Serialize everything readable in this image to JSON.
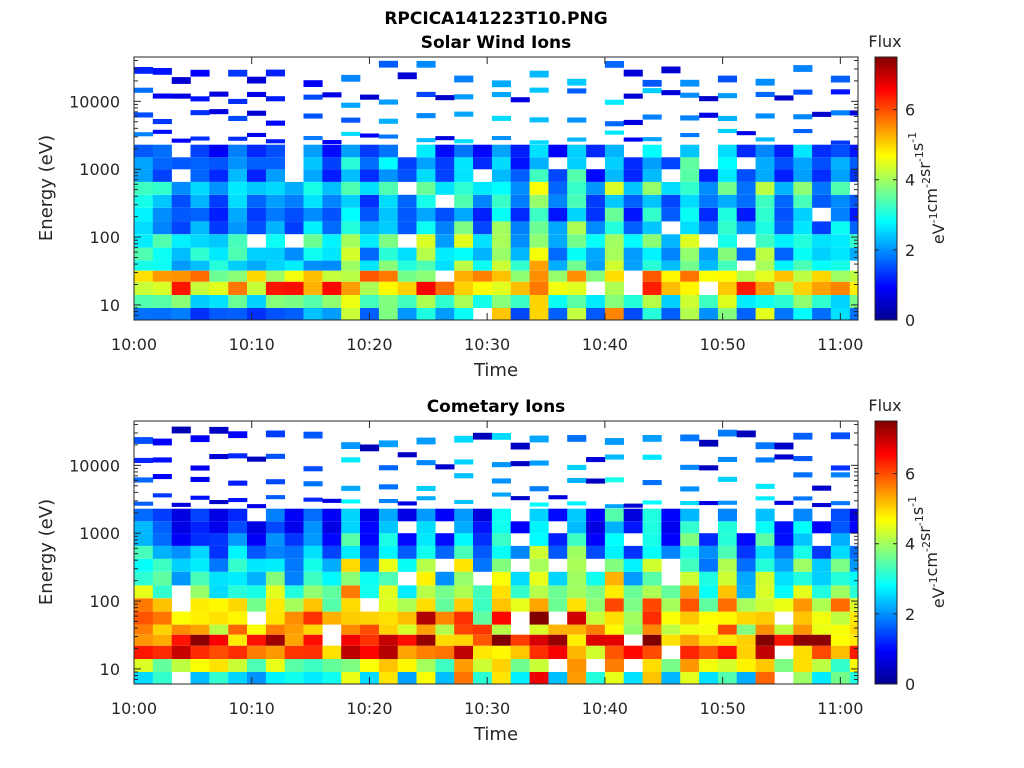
{
  "figure_title": "RPCICA141223T10.PNG",
  "colormap": [
    "#00008f",
    "#0000ff",
    "#0080ff",
    "#00ffff",
    "#80ff80",
    "#ffff00",
    "#ff8000",
    "#ff0000",
    "#800000"
  ],
  "chart_data": [
    {
      "type": "heatmap",
      "title": "Solar Wind Ions",
      "xlabel": "Time",
      "ylabel": "Energy (eV)",
      "x_range_minutes": [
        0,
        61.5
      ],
      "y_scale": "log",
      "ylim": [
        6,
        45000
      ],
      "xticks": [
        {
          "minute": 0,
          "label": "10:00"
        },
        {
          "minute": 10,
          "label": "10:10"
        },
        {
          "minute": 20,
          "label": "10:20"
        },
        {
          "minute": 30,
          "label": "10:30"
        },
        {
          "minute": 40,
          "label": "10:40"
        },
        {
          "minute": 50,
          "label": "10:50"
        },
        {
          "minute": 60,
          "label": "11:00"
        }
      ],
      "yticks": [
        {
          "value": 10,
          "label": "10"
        },
        {
          "value": 100,
          "label": "100"
        },
        {
          "value": 1000,
          "label": "1000"
        },
        {
          "value": 10000,
          "label": "10000"
        }
      ],
      "colorbar": {
        "label": "Flux",
        "units": [
          "eV",
          "-1",
          "cm",
          "-2",
          "sr",
          "-1",
          "s",
          "-1"
        ],
        "range": [
          0,
          7.5
        ],
        "ticks": [
          {
            "value": 0,
            "label": "0"
          },
          {
            "value": 2,
            "label": "2"
          },
          {
            "value": 4,
            "label": "4"
          },
          {
            "value": 6,
            "label": "6"
          }
        ]
      },
      "bands": [
        {
          "e0": 6,
          "e1": 9,
          "v": 1.7
        },
        {
          "e0": 9,
          "e1": 14,
          "v": 3.2
        },
        {
          "e0": 14,
          "e1": 22,
          "v": 5.3
        },
        {
          "e0": 22,
          "e1": 32,
          "v": 4.8
        },
        {
          "e0": 32,
          "e1": 45,
          "v": 2.6
        },
        {
          "e0": 45,
          "e1": 70,
          "v": 2.2
        },
        {
          "e0": 70,
          "e1": 110,
          "v": 2.6
        },
        {
          "e0": 110,
          "e1": 170,
          "v": 1.8
        },
        {
          "e0": 170,
          "e1": 270,
          "v": 1.4
        },
        {
          "e0": 270,
          "e1": 420,
          "v": 1.6
        },
        {
          "e0": 420,
          "e1": 650,
          "v": 2.2
        },
        {
          "e0": 650,
          "e1": 1000,
          "v": 1.3
        },
        {
          "e0": 1000,
          "e1": 1500,
          "v": 1.4
        },
        {
          "e0": 1500,
          "e1": 2300,
          "v": 1.1
        },
        {
          "e0": 2300,
          "e1": 4000,
          "v": 0.8
        },
        {
          "e0": 4000,
          "e1": 8000,
          "v": 0.7
        },
        {
          "e0": 8000,
          "e1": 16000,
          "v": 0.6
        },
        {
          "e0": 16000,
          "e1": 40000,
          "v": 0.5
        }
      ],
      "bursts": [
        {
          "t": 0.5,
          "e0": 6,
          "e1": 45000,
          "v": 3.5
        },
        {
          "t": 3.0,
          "e0": 6,
          "e1": 45000,
          "v": 3.6
        },
        {
          "t": 6.2,
          "e0": 6,
          "e1": 45000,
          "v": 3.4
        },
        {
          "t": 9.3,
          "e0": 6,
          "e1": 45000,
          "v": 3.7
        },
        {
          "t": 12.5,
          "e0": 6,
          "e1": 45000,
          "v": 3.5
        },
        {
          "t": 15.6,
          "e0": 6,
          "e1": 45000,
          "v": 3.6
        },
        {
          "t": 18.5,
          "e0": 6,
          "e1": 45000,
          "v": 4.2
        },
        {
          "t": 21.8,
          "e0": 6,
          "e1": 45000,
          "v": 4.5
        },
        {
          "t": 25.0,
          "e0": 6,
          "e1": 45000,
          "v": 4.3
        },
        {
          "t": 28.1,
          "e0": 6,
          "e1": 45000,
          "v": 4.1
        },
        {
          "t": 31.3,
          "e0": 6,
          "e1": 45000,
          "v": 4.6
        },
        {
          "t": 34.4,
          "e0": 6,
          "e1": 45000,
          "v": 4.4
        },
        {
          "t": 37.6,
          "e0": 6,
          "e1": 45000,
          "v": 4.3
        },
        {
          "t": 40.8,
          "e0": 6,
          "e1": 45000,
          "v": 4.5
        },
        {
          "t": 43.9,
          "e0": 6,
          "e1": 45000,
          "v": 4.4
        },
        {
          "t": 47.1,
          "e0": 6,
          "e1": 45000,
          "v": 4.8
        },
        {
          "t": 50.2,
          "e0": 6,
          "e1": 45000,
          "v": 4.6
        },
        {
          "t": 53.4,
          "e0": 6,
          "e1": 45000,
          "v": 5.0
        },
        {
          "t": 56.5,
          "e0": 6,
          "e1": 45000,
          "v": 4.7
        },
        {
          "t": 59.6,
          "e0": 6,
          "e1": 45000,
          "v": 4.2
        }
      ]
    },
    {
      "type": "heatmap",
      "title": "Cometary Ions",
      "xlabel": "Time",
      "ylabel": "Energy (eV)",
      "x_range_minutes": [
        0,
        61.5
      ],
      "y_scale": "log",
      "ylim": [
        6,
        45000
      ],
      "xticks": [
        {
          "minute": 0,
          "label": "10:00"
        },
        {
          "minute": 10,
          "label": "10:10"
        },
        {
          "minute": 20,
          "label": "10:20"
        },
        {
          "minute": 30,
          "label": "10:30"
        },
        {
          "minute": 40,
          "label": "10:40"
        },
        {
          "minute": 50,
          "label": "10:50"
        },
        {
          "minute": 60,
          "label": "11:00"
        }
      ],
      "yticks": [
        {
          "value": 10,
          "label": "10"
        },
        {
          "value": 100,
          "label": "100"
        },
        {
          "value": 1000,
          "label": "1000"
        },
        {
          "value": 10000,
          "label": "10000"
        }
      ],
      "colorbar": {
        "label": "Flux",
        "units": [
          "eV",
          "-1",
          "cm",
          "-2",
          "sr",
          "-1",
          "s",
          "-1"
        ],
        "range": [
          0,
          7.5
        ],
        "ticks": [
          {
            "value": 0,
            "label": "0"
          },
          {
            "value": 2,
            "label": "2"
          },
          {
            "value": 4,
            "label": "4"
          },
          {
            "value": 6,
            "label": "6"
          }
        ]
      },
      "bands": [
        {
          "e0": 6,
          "e1": 9,
          "v": 2.6
        },
        {
          "e0": 9,
          "e1": 14,
          "v": 4.0
        },
        {
          "e0": 14,
          "e1": 22,
          "v": 5.8
        },
        {
          "e0": 22,
          "e1": 32,
          "v": 6.2
        },
        {
          "e0": 32,
          "e1": 45,
          "v": 5.0
        },
        {
          "e0": 45,
          "e1": 70,
          "v": 4.5
        },
        {
          "e0": 70,
          "e1": 110,
          "v": 3.9
        },
        {
          "e0": 110,
          "e1": 170,
          "v": 3.0
        },
        {
          "e0": 170,
          "e1": 270,
          "v": 2.5
        },
        {
          "e0": 270,
          "e1": 420,
          "v": 2.3
        },
        {
          "e0": 420,
          "e1": 650,
          "v": 1.6
        },
        {
          "e0": 650,
          "e1": 1000,
          "v": 1.1
        },
        {
          "e0": 1000,
          "e1": 1500,
          "v": 0.9
        },
        {
          "e0": 1500,
          "e1": 2300,
          "v": 0.8
        },
        {
          "e0": 2300,
          "e1": 4000,
          "v": 0.6
        },
        {
          "e0": 4000,
          "e1": 8000,
          "v": 0.5
        },
        {
          "e0": 8000,
          "e1": 16000,
          "v": 0.5
        },
        {
          "e0": 16000,
          "e1": 40000,
          "v": 0.4
        }
      ],
      "bursts": [
        {
          "t": 0.5,
          "e0": 6,
          "e1": 45000,
          "v": 4.6
        },
        {
          "t": 3.0,
          "e0": 6,
          "e1": 45000,
          "v": 4.8
        },
        {
          "t": 6.2,
          "e0": 6,
          "e1": 45000,
          "v": 4.5
        },
        {
          "t": 9.3,
          "e0": 6,
          "e1": 45000,
          "v": 4.9
        },
        {
          "t": 12.5,
          "e0": 6,
          "e1": 45000,
          "v": 4.7
        },
        {
          "t": 15.6,
          "e0": 6,
          "e1": 45000,
          "v": 4.8
        },
        {
          "t": 18.5,
          "e0": 6,
          "e1": 45000,
          "v": 5.4
        },
        {
          "t": 21.8,
          "e0": 6,
          "e1": 45000,
          "v": 5.8
        },
        {
          "t": 25.0,
          "e0": 6,
          "e1": 45000,
          "v": 5.5
        },
        {
          "t": 28.1,
          "e0": 6,
          "e1": 45000,
          "v": 5.3
        },
        {
          "t": 31.3,
          "e0": 6,
          "e1": 45000,
          "v": 5.6
        },
        {
          "t": 34.4,
          "e0": 6,
          "e1": 45000,
          "v": 5.5
        },
        {
          "t": 37.6,
          "e0": 6,
          "e1": 45000,
          "v": 5.4
        },
        {
          "t": 40.8,
          "e0": 6,
          "e1": 45000,
          "v": 5.6
        },
        {
          "t": 43.9,
          "e0": 6,
          "e1": 45000,
          "v": 5.5
        },
        {
          "t": 47.1,
          "e0": 6,
          "e1": 45000,
          "v": 6.3
        },
        {
          "t": 50.2,
          "e0": 6,
          "e1": 45000,
          "v": 5.8
        },
        {
          "t": 53.4,
          "e0": 6,
          "e1": 45000,
          "v": 6.5
        },
        {
          "t": 56.5,
          "e0": 6,
          "e1": 45000,
          "v": 5.9
        },
        {
          "t": 59.6,
          "e0": 6,
          "e1": 45000,
          "v": 5.4
        }
      ]
    }
  ]
}
